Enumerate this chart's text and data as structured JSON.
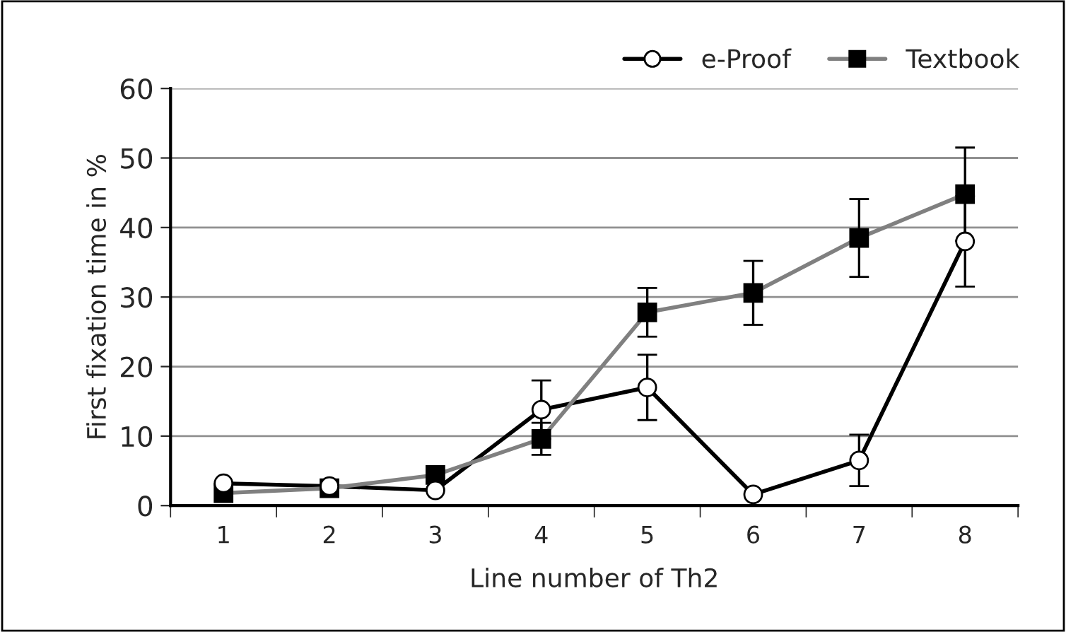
{
  "chart_data": {
    "type": "line",
    "xlabel": "Line number of Th2",
    "ylabel": "First fixation time in %",
    "categories": [
      "1",
      "2",
      "3",
      "4",
      "5",
      "6",
      "7",
      "8"
    ],
    "series": [
      {
        "name": "e-Proof",
        "color": "#000000",
        "marker": "circle",
        "values": [
          3.2,
          2.8,
          2.2,
          13.8,
          17,
          1.6,
          6.5,
          38
        ],
        "errors": [
          null,
          null,
          null,
          4.2,
          4.7,
          null,
          3.7,
          6.5
        ]
      },
      {
        "name": "Textbook",
        "color": "#808080",
        "marker": "square",
        "values": [
          1.8,
          2.5,
          4.4,
          9.6,
          27.8,
          30.6,
          38.5,
          44.8
        ],
        "errors": [
          null,
          null,
          null,
          2.3,
          3.5,
          4.6,
          5.6,
          6.7
        ]
      }
    ],
    "ylim": [
      0,
      60
    ],
    "yticks": [
      0,
      10,
      20,
      30,
      40,
      50,
      60
    ],
    "grid": "y",
    "legend": "top right"
  }
}
